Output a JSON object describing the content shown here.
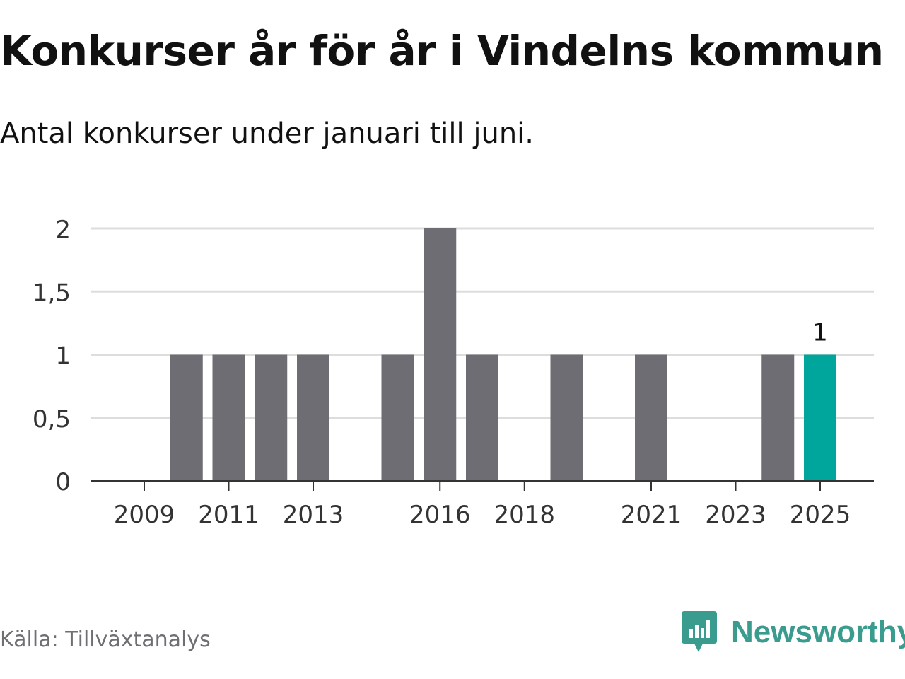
{
  "title": "Konkurser år för år i Vindelns kommun",
  "subtitle": "Antal konkurser under januari till juni.",
  "source": "Källa: Tillväxtanalys",
  "brand": {
    "name": "Newsworthy",
    "icon": "newsworthy-logo-icon",
    "color": "#3a9c8f"
  },
  "colors": {
    "bar": "#6e6d73",
    "highlight": "#00a69c",
    "grid": "#dddddd",
    "axis": "#333333"
  },
  "chart_data": {
    "type": "bar",
    "categories": [
      "2009",
      "2010",
      "2011",
      "2012",
      "2013",
      "2014",
      "2015",
      "2016",
      "2017",
      "2018",
      "2019",
      "2020",
      "2021",
      "2022",
      "2023",
      "2024",
      "2025"
    ],
    "values": [
      0,
      1,
      1,
      1,
      1,
      0,
      1,
      2,
      1,
      0,
      1,
      0,
      1,
      0,
      0,
      1,
      1
    ],
    "x_tick_labels": [
      "2009",
      "2011",
      "2013",
      "2016",
      "2018",
      "2021",
      "2023",
      "2025"
    ],
    "y_ticks": [
      0,
      0.5,
      1,
      1.5,
      2
    ],
    "y_tick_labels": [
      "0",
      "0,5",
      "1",
      "1,5",
      "2"
    ],
    "ylim": [
      0,
      2
    ],
    "highlight": "2025",
    "data_labels": [
      {
        "category": "2025",
        "text": "1"
      }
    ],
    "grid": true,
    "legend": "none"
  }
}
